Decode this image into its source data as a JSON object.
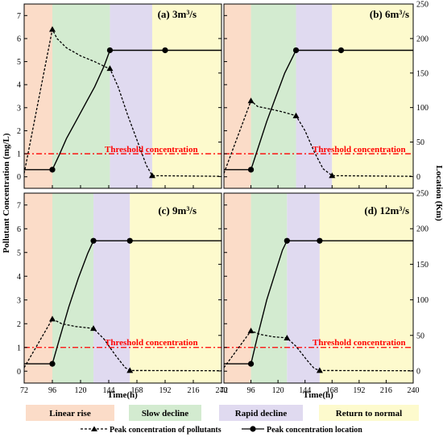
{
  "chart_data": {
    "type": "line",
    "x_ticks": [
      72,
      96,
      120,
      144,
      168,
      192,
      216,
      240
    ],
    "y_left_ticks": [
      0,
      1,
      2,
      3,
      4,
      5,
      6,
      7
    ],
    "y_right_ticks": [
      0,
      50,
      100,
      150,
      200,
      250
    ],
    "xlim": [
      72,
      240
    ],
    "ylim_left": [
      -0.5,
      7.5
    ],
    "ylim_right": [
      -17,
      250
    ],
    "xlabel": "Time(h)",
    "ylabel_left": "Pollutant Concentration (mg/L)",
    "ylabel_right": "Location (Km)",
    "threshold_value": 1.0,
    "threshold_label": "Threshold concentration",
    "phase_colors": {
      "linear_rise": "#fbdcc8",
      "slow_decline": "#d3ebd0",
      "rapid_decline": "#e0daf0",
      "return_to_normal": "#fdfacd"
    },
    "threshold_color": "#ff0000",
    "panels": [
      {
        "title_prefix": "(a) 3m",
        "title_sup": "3",
        "title_suffix": "/s",
        "phases": [
          [
            72,
            96
          ],
          [
            96,
            145
          ],
          [
            145,
            181
          ],
          [
            181,
            240
          ]
        ],
        "concentration": [
          [
            72,
            0.15
          ],
          [
            96,
            6.4
          ],
          [
            100,
            6.0
          ],
          [
            108,
            5.6
          ],
          [
            120,
            5.25
          ],
          [
            132,
            5.0
          ],
          [
            142,
            4.75
          ],
          [
            145,
            4.7
          ],
          [
            152,
            3.9
          ],
          [
            160,
            2.7
          ],
          [
            168,
            1.6
          ],
          [
            176,
            0.5
          ],
          [
            181,
            0.05
          ],
          [
            240,
            0.02
          ]
        ],
        "conc_markers": [
          [
            96,
            6.4
          ],
          [
            145,
            4.7
          ],
          [
            181,
            0.05
          ]
        ],
        "location": [
          [
            72,
            10
          ],
          [
            96,
            10
          ],
          [
            102,
            32
          ],
          [
            108,
            55
          ],
          [
            116,
            80
          ],
          [
            124,
            105
          ],
          [
            132,
            130
          ],
          [
            140,
            160
          ],
          [
            145,
            183
          ],
          [
            192,
            183
          ],
          [
            240,
            183
          ]
        ],
        "loc_markers": [
          [
            96,
            10
          ],
          [
            145,
            183
          ],
          [
            192,
            183
          ]
        ]
      },
      {
        "title_prefix": "(b) 6m",
        "title_sup": "3",
        "title_suffix": "/s",
        "phases": [
          [
            72,
            96
          ],
          [
            96,
            136
          ],
          [
            136,
            168
          ],
          [
            168,
            240
          ]
        ],
        "concentration": [
          [
            72,
            0.15
          ],
          [
            96,
            3.3
          ],
          [
            102,
            3.05
          ],
          [
            112,
            2.95
          ],
          [
            124,
            2.82
          ],
          [
            136,
            2.65
          ],
          [
            144,
            2.0
          ],
          [
            152,
            1.1
          ],
          [
            160,
            0.35
          ],
          [
            168,
            0.05
          ],
          [
            240,
            0.02
          ]
        ],
        "conc_markers": [
          [
            96,
            3.3
          ],
          [
            136,
            2.65
          ],
          [
            168,
            0.05
          ]
        ],
        "location": [
          [
            72,
            10
          ],
          [
            96,
            10
          ],
          [
            102,
            40
          ],
          [
            110,
            80
          ],
          [
            118,
            115
          ],
          [
            126,
            150
          ],
          [
            136,
            183
          ],
          [
            176,
            183
          ],
          [
            240,
            183
          ]
        ],
        "loc_markers": [
          [
            96,
            10
          ],
          [
            136,
            183
          ],
          [
            176,
            183
          ]
        ]
      },
      {
        "title_prefix": "(c) 9m",
        "title_sup": "3",
        "title_suffix": "/s",
        "phases": [
          [
            72,
            96
          ],
          [
            96,
            131
          ],
          [
            131,
            162
          ],
          [
            162,
            240
          ]
        ],
        "concentration": [
          [
            72,
            0.15
          ],
          [
            96,
            2.2
          ],
          [
            104,
            2.0
          ],
          [
            116,
            1.88
          ],
          [
            131,
            1.8
          ],
          [
            140,
            1.35
          ],
          [
            150,
            0.65
          ],
          [
            158,
            0.15
          ],
          [
            162,
            0.03
          ],
          [
            240,
            0.02
          ]
        ],
        "conc_markers": [
          [
            96,
            2.2
          ],
          [
            131,
            1.8
          ],
          [
            162,
            0.03
          ]
        ],
        "location": [
          [
            72,
            10
          ],
          [
            96,
            10
          ],
          [
            102,
            45
          ],
          [
            110,
            90
          ],
          [
            118,
            130
          ],
          [
            126,
            165
          ],
          [
            131,
            183
          ],
          [
            162,
            183
          ],
          [
            240,
            183
          ]
        ],
        "loc_markers": [
          [
            96,
            10
          ],
          [
            131,
            183
          ],
          [
            162,
            183
          ]
        ]
      },
      {
        "title_prefix": "(d) 12m",
        "title_sup": "3",
        "title_suffix": "/s",
        "phases": [
          [
            72,
            96
          ],
          [
            96,
            128
          ],
          [
            128,
            157
          ],
          [
            157,
            240
          ]
        ],
        "concentration": [
          [
            72,
            0.15
          ],
          [
            96,
            1.7
          ],
          [
            104,
            1.55
          ],
          [
            116,
            1.45
          ],
          [
            128,
            1.4
          ],
          [
            136,
            1.05
          ],
          [
            146,
            0.45
          ],
          [
            152,
            0.12
          ],
          [
            157,
            0.03
          ],
          [
            240,
            0.02
          ]
        ],
        "conc_markers": [
          [
            96,
            1.7
          ],
          [
            128,
            1.4
          ],
          [
            157,
            0.03
          ]
        ],
        "location": [
          [
            72,
            10
          ],
          [
            96,
            10
          ],
          [
            102,
            50
          ],
          [
            110,
            100
          ],
          [
            118,
            140
          ],
          [
            124,
            170
          ],
          [
            128,
            183
          ],
          [
            157,
            183
          ],
          [
            240,
            183
          ]
        ],
        "loc_markers": [
          [
            96,
            10
          ],
          [
            128,
            183
          ],
          [
            157,
            183
          ]
        ]
      }
    ],
    "legend": {
      "phase_labels": [
        "Linear rise",
        "Slow decline",
        "Rapid decline",
        "Return to normal"
      ],
      "concentration_series": "Peak concentration of pollutants",
      "location_series": "Peak concentration location"
    }
  }
}
